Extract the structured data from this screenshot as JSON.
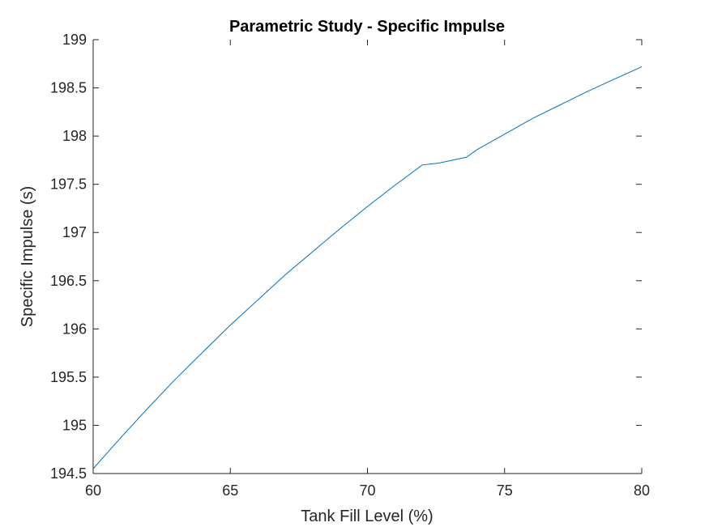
{
  "chart_data": {
    "type": "line",
    "title": "Parametric Study - Specific Impulse",
    "xlabel": "Tank Fill Level (%)",
    "ylabel": "Specific Impulse (s)",
    "xlim": [
      60,
      80
    ],
    "ylim": [
      194.5,
      199
    ],
    "xticks": [
      60,
      65,
      70,
      75,
      80
    ],
    "yticks": [
      194.5,
      195,
      195.5,
      196,
      196.5,
      197,
      197.5,
      198,
      198.5,
      199
    ],
    "grid": false,
    "color": "#0072BD",
    "series": [
      {
        "x": [
          60,
          61,
          62,
          63,
          64,
          65,
          66,
          67,
          68,
          69,
          70,
          71,
          72,
          72.6,
          73.6,
          74,
          75,
          76,
          77,
          78,
          79,
          80
        ],
        "y": [
          194.55,
          194.87,
          195.18,
          195.48,
          195.76,
          196.04,
          196.3,
          196.56,
          196.8,
          197.04,
          197.27,
          197.49,
          197.7,
          197.72,
          197.78,
          197.86,
          198.02,
          198.18,
          198.32,
          198.46,
          198.59,
          198.72
        ]
      }
    ]
  }
}
